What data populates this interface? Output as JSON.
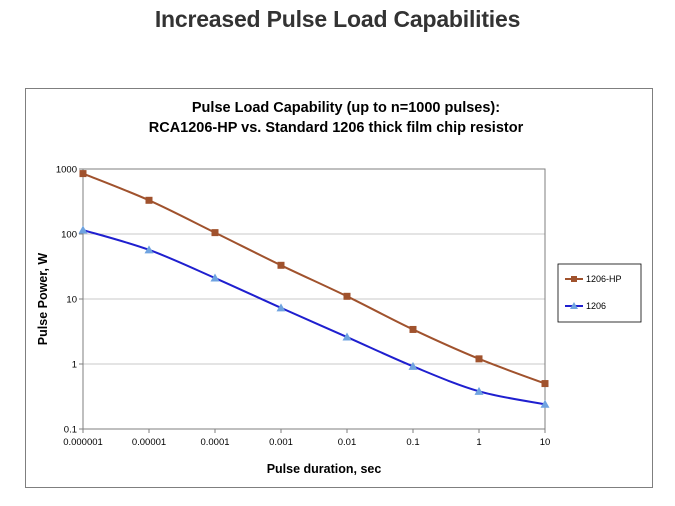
{
  "slide_title": "Increased Pulse Load Capabilities",
  "colors": {
    "series_1206hp": "#a0522d",
    "series_1206": "#1f1fcf",
    "marker_1206": "#6fa3e0",
    "grid": "#c8c8c8"
  },
  "chart_data": {
    "type": "line",
    "title_line1": "Pulse Load Capability (up to n=1000 pulses):",
    "title_line2": "RCA1206-HP vs.  Standard 1206 thick film  chip resistor",
    "xlabel": "Pulse duration, sec",
    "ylabel": "Pulse Power, W",
    "x_scale": "log",
    "y_scale": "log",
    "xlim": [
      1e-06,
      10
    ],
    "ylim": [
      0.1,
      1000
    ],
    "x_ticks": [
      {
        "value": 1e-06,
        "label": "0.000001"
      },
      {
        "value": 1e-05,
        "label": "0.00001"
      },
      {
        "value": 0.0001,
        "label": "0.0001"
      },
      {
        "value": 0.001,
        "label": "0.001"
      },
      {
        "value": 0.01,
        "label": "0.01"
      },
      {
        "value": 0.1,
        "label": "0.1"
      },
      {
        "value": 1,
        "label": "1"
      },
      {
        "value": 10,
        "label": "10"
      }
    ],
    "y_ticks": [
      {
        "value": 0.1,
        "label": "0.1"
      },
      {
        "value": 1,
        "label": "1"
      },
      {
        "value": 10,
        "label": "10"
      },
      {
        "value": 100,
        "label": "100"
      },
      {
        "value": 1000,
        "label": "1000"
      }
    ],
    "grid": "horizontal",
    "legend_position": "right",
    "series": [
      {
        "name": "1206-HP",
        "marker": "square",
        "x": [
          1e-06,
          1e-05,
          0.0001,
          0.001,
          0.01,
          0.1,
          1,
          10
        ],
        "y": [
          850,
          330,
          105,
          33,
          11,
          3.4,
          1.2,
          0.5
        ]
      },
      {
        "name": "1206",
        "marker": "triangle",
        "x": [
          1e-06,
          1e-05,
          0.0001,
          0.001,
          0.01,
          0.1,
          1,
          10
        ],
        "y": [
          115,
          57,
          21,
          7.3,
          2.6,
          0.92,
          0.38,
          0.24
        ]
      }
    ]
  }
}
